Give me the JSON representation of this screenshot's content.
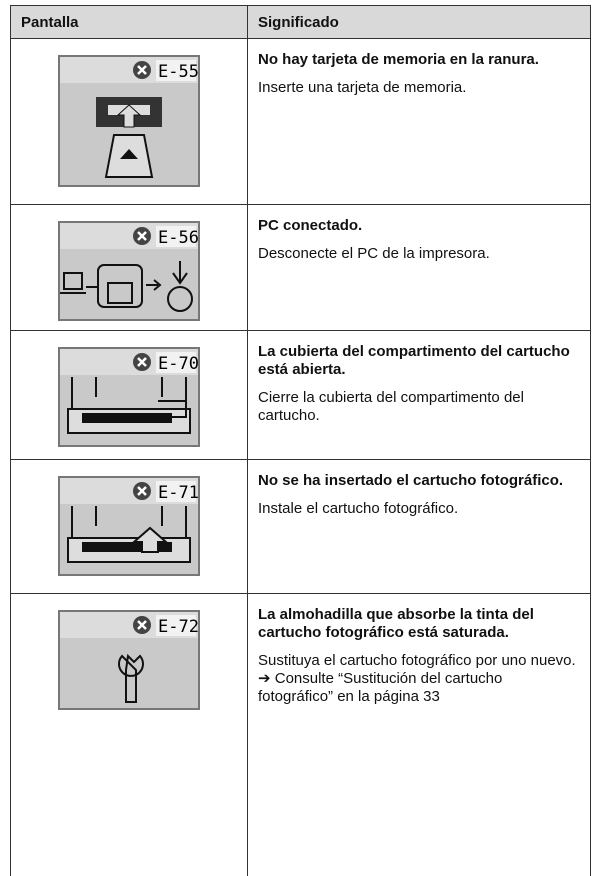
{
  "table": {
    "headers": [
      "Pantalla",
      "Significado"
    ],
    "rows": [
      {
        "code": "E-55",
        "title": "No hay tarjeta de memoria en la ranura.",
        "lines": [
          "Inserte una tarjeta de memoria."
        ]
      },
      {
        "code": "E-56",
        "title": "PC conectado.",
        "lines": [
          "Desconecte el PC de la impresora."
        ]
      },
      {
        "code": "E-70",
        "title": "La cubierta del compartimento del cartucho está abierta.",
        "lines": [
          "Cierre la cubierta del compartimento del cartucho."
        ]
      },
      {
        "code": "E-71",
        "title": "No se ha insertado el cartucho fotográfico.",
        "lines": [
          "Instale el cartucho fotográfico."
        ]
      },
      {
        "code": "E-72",
        "title": "La almohadilla que absorbe la tinta del cartucho fotográfico está saturada.",
        "lines": [
          "Sustituya el cartucho fotográfico por uno nuevo.",
          "➔ Consulte “Sustitución del cartucho fotográfico” en la página 33"
        ]
      }
    ]
  }
}
